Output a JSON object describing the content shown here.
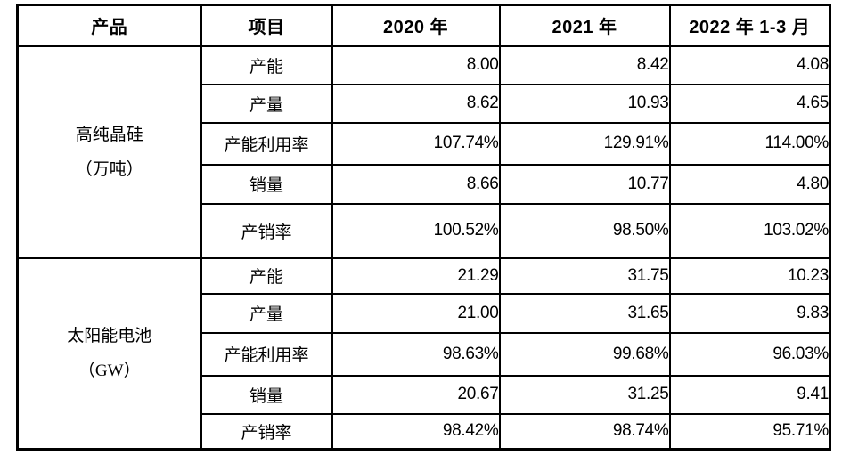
{
  "table": {
    "headers": [
      "产品",
      "项目",
      "2020 年",
      "2021 年",
      "2022 年 1-3 月"
    ],
    "groups": [
      {
        "product_lines": [
          "高纯晶硅",
          "（万吨）"
        ],
        "rows": [
          {
            "item": "产能",
            "values": [
              "8.00",
              "8.42",
              "4.08"
            ]
          },
          {
            "item": "产量",
            "values": [
              "8.62",
              "10.93",
              "4.65"
            ]
          },
          {
            "item": "产能利用率",
            "values": [
              "107.74%",
              "129.91%",
              "114.00%"
            ]
          },
          {
            "item": "销量",
            "values": [
              "8.66",
              "10.77",
              "4.80"
            ]
          },
          {
            "item": "产销率",
            "values": [
              "100.52%",
              "98.50%",
              "103.02%"
            ]
          }
        ]
      },
      {
        "product_lines": [
          "太阳能电池",
          "（GW）"
        ],
        "rows": [
          {
            "item": "产能",
            "values": [
              "21.29",
              "31.75",
              "10.23"
            ]
          },
          {
            "item": "产量",
            "values": [
              "21.00",
              "31.65",
              "9.83"
            ]
          },
          {
            "item": "产能利用率",
            "values": [
              "98.63%",
              "99.68%",
              "96.03%"
            ]
          },
          {
            "item": "销量",
            "values": [
              "20.67",
              "31.25",
              "9.41"
            ]
          },
          {
            "item": "产销率",
            "values": [
              "98.42%",
              "98.74%",
              "95.71%"
            ]
          }
        ]
      }
    ],
    "colors": {
      "border": "#000000",
      "text": "#000000",
      "background": "#ffffff"
    }
  }
}
